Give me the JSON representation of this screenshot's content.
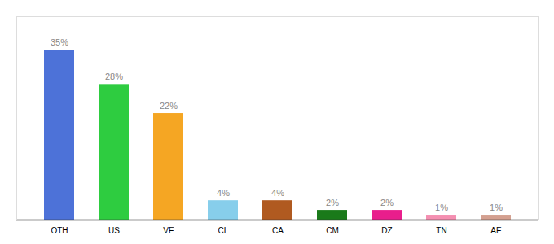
{
  "chart_data": {
    "type": "bar",
    "categories": [
      "OTH",
      "US",
      "VE",
      "CL",
      "CA",
      "CM",
      "DZ",
      "TN",
      "AE"
    ],
    "values": [
      35,
      28,
      22,
      4,
      4,
      2,
      2,
      1,
      1
    ],
    "value_labels": [
      "35%",
      "28%",
      "22%",
      "4%",
      "4%",
      "2%",
      "2%",
      "1%",
      "1%"
    ],
    "colors": [
      "#4d72d8",
      "#2ecc40",
      "#f5a623",
      "#87ceeb",
      "#b05a20",
      "#1a7a1a",
      "#e91e8c",
      "#f48fb1",
      "#d4a090"
    ],
    "ylim": [
      0,
      42
    ],
    "data_labels": true,
    "tick_labels": "x",
    "grid": false
  }
}
